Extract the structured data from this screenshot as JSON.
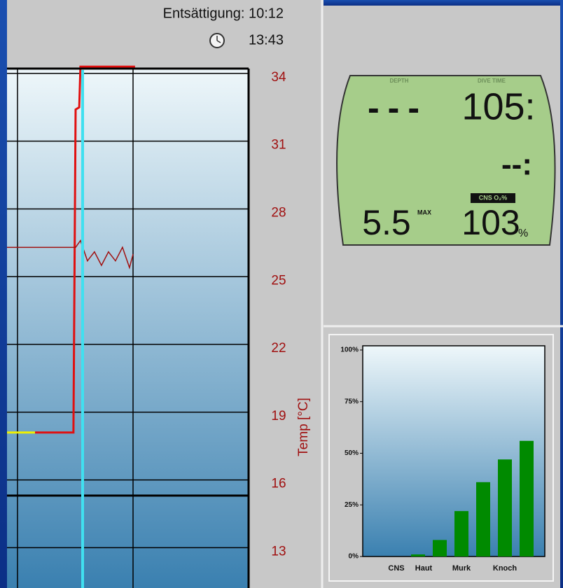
{
  "header": {
    "desaturation": "Entsättigung: 10:12",
    "time": "13:43"
  },
  "dive_computer": {
    "depth_label": "DEPTH",
    "dive_time_label": "DIVE TIME",
    "depth": "---",
    "dive_time": "105:",
    "second_row": "--:",
    "cns_label": "CNS O₂%",
    "max_depth": "5.5",
    "max_label": "MAX",
    "cns": "103",
    "percent": "%"
  },
  "chart_data": [
    {
      "type": "line",
      "y_label": "Temp [°C]",
      "xlim": [
        0,
        100
      ],
      "ylim": [
        11.4,
        34.4
      ],
      "yticks": [
        34,
        31,
        28,
        25,
        22,
        19,
        16,
        13
      ],
      "grid": true,
      "series": [
        {
          "color": "#f0f000",
          "x": [
            0,
            11.6
          ],
          "values": [
            18.1,
            18.1
          ]
        },
        {
          "color": "#e01010",
          "x": [
            11.6,
            27.5,
            28.4,
            29.9,
            30.4,
            53
          ],
          "values": [
            18.1,
            18.1,
            32.4,
            32.5,
            34.3,
            34.3
          ]
        },
        {
          "color": "#a01010",
          "x": [
            0,
            28.4,
            30.4,
            33.3,
            36.2,
            39.1,
            42.0,
            44.9,
            47.8,
            50.7,
            52.2
          ],
          "values": [
            26.3,
            26.3,
            26.6,
            25.7,
            26.1,
            25.5,
            26.1,
            25.7,
            26.3,
            25.4,
            26.0
          ]
        }
      ]
    },
    {
      "type": "bar",
      "categories": [
        "CNS",
        "Haut",
        null,
        "Murk",
        null,
        "Knoch",
        null
      ],
      "values": [
        0,
        1,
        8,
        22,
        36,
        47,
        56
      ],
      "color": "#008a00",
      "ylim": [
        0,
        100
      ],
      "yticks": [
        {
          "value": 100,
          "label": "100%"
        },
        {
          "value": 75,
          "label": "75%"
        },
        {
          "value": 50,
          "label": "50%"
        },
        {
          "value": 25,
          "label": "25%"
        },
        {
          "value": 0,
          "label": "0%"
        }
      ]
    }
  ]
}
